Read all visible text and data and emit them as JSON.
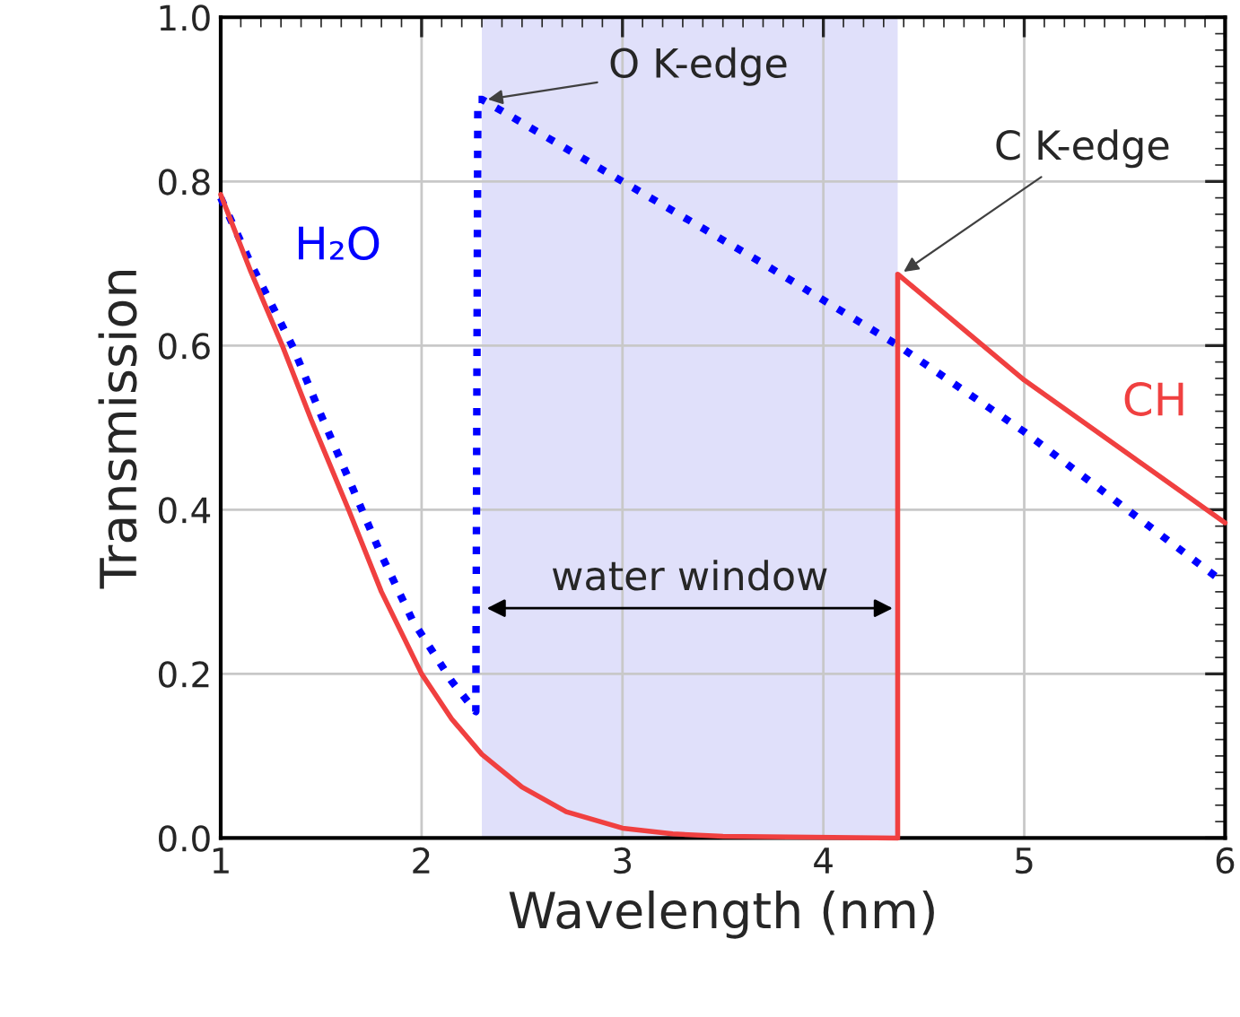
{
  "chart_data": {
    "type": "line",
    "xlabel": "Wavelength (nm)",
    "ylabel": "Transmission",
    "xlim": [
      1,
      6
    ],
    "xticks": [
      1,
      2,
      3,
      4,
      5,
      6
    ],
    "ylim": [
      0,
      1
    ],
    "yticks": [
      {
        "value": 0,
        "label": "0.0"
      },
      {
        "value": 0.2,
        "label": "0.2"
      },
      {
        "value": 0.4,
        "label": "0.4"
      },
      {
        "value": 0.6,
        "label": "0.6"
      },
      {
        "value": 0.8,
        "label": "0.8"
      },
      {
        "value": 1,
        "label": "1.0"
      }
    ],
    "grid": true,
    "marker": "none",
    "series": [
      {
        "name": "H₂O",
        "color": "#0000ff",
        "line_style": "dotted",
        "x": [
          1.0,
          1.15,
          1.36,
          1.5,
          1.64,
          1.79,
          1.955,
          2.15,
          2.27,
          2.28,
          2.3,
          3.0,
          3.7,
          4.36,
          5.0,
          6.0
        ],
        "values": [
          0.78,
          0.7,
          0.598,
          0.515,
          0.436,
          0.35,
          0.265,
          0.191,
          0.154,
          0.9,
          0.9,
          0.8,
          0.7,
          0.602,
          0.495,
          0.31
        ]
      },
      {
        "name": "CH",
        "color": "#f04040",
        "line_style": "solid",
        "x": [
          1.0,
          1.15,
          1.31,
          1.45,
          1.64,
          1.8,
          2.0,
          2.15,
          2.3,
          2.5,
          2.72,
          3.0,
          3.25,
          3.5,
          4.37,
          4.37,
          5.0,
          6.0
        ],
        "values": [
          0.784,
          0.69,
          0.598,
          0.51,
          0.398,
          0.3,
          0.2,
          0.145,
          0.102,
          0.062,
          0.032,
          0.012,
          0.005,
          0.002,
          0.0,
          0.687,
          0.558,
          0.384
        ]
      }
    ],
    "bands": [
      {
        "axis": "x",
        "from": 2.3,
        "to": 4.37,
        "label": "water window",
        "color": "#e0e0fa"
      }
    ],
    "annotations": [
      {
        "text": "O K-edge",
        "x": 2.33,
        "y": 0.9
      },
      {
        "text": "C K-edge",
        "x": 4.4,
        "y": 0.69
      }
    ]
  }
}
